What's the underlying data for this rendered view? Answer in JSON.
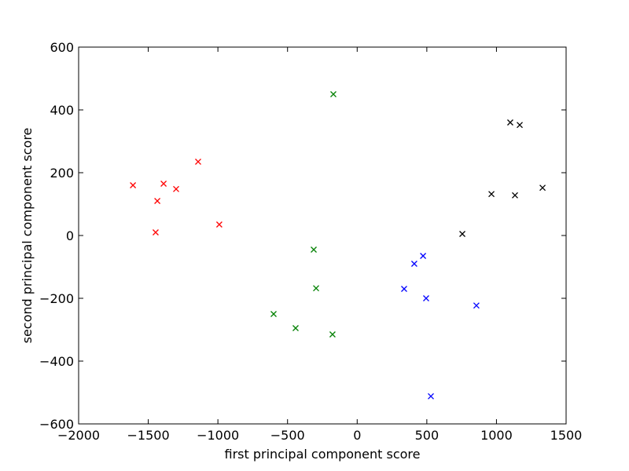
{
  "chart_data": {
    "type": "scatter",
    "xlabel": "first principal component score",
    "ylabel": "second principal component score",
    "xlim": [
      -2000,
      1500
    ],
    "ylim": [
      -600,
      600
    ],
    "xticks": [
      {
        "value": -2000,
        "label": "−2000"
      },
      {
        "value": -1500,
        "label": "−1500"
      },
      {
        "value": -1000,
        "label": "−1000"
      },
      {
        "value": -500,
        "label": "−500"
      },
      0,
      500,
      1000,
      1500
    ],
    "yticks": [
      {
        "value": -600,
        "label": "−600"
      },
      {
        "value": -400,
        "label": "−400"
      },
      {
        "value": -200,
        "label": "−200"
      },
      0,
      200,
      400,
      600
    ],
    "grid": false,
    "marker": "x",
    "series": [
      {
        "color": "#ff0000",
        "x": [
          -1610,
          -1435,
          -1390,
          -1300,
          -1142,
          -1447,
          -990
        ],
        "values": [
          160,
          110,
          165,
          148,
          235,
          10,
          35
        ]
      },
      {
        "color": "#008000",
        "x": [
          -171,
          -312,
          -295,
          -600,
          -442,
          -177
        ],
        "values": [
          450,
          -45,
          -168,
          -250,
          -295,
          -315
        ]
      },
      {
        "color": "#0000ff",
        "x": [
          473,
          410,
          337,
          495,
          856,
          529
        ],
        "values": [
          -65,
          -90,
          -170,
          -200,
          -223,
          -512
        ]
      },
      {
        "color": "#000000",
        "x": [
          1099,
          1167,
          964,
          1133,
          1331,
          755
        ],
        "values": [
          360,
          352,
          132,
          128,
          152,
          5
        ]
      }
    ]
  }
}
